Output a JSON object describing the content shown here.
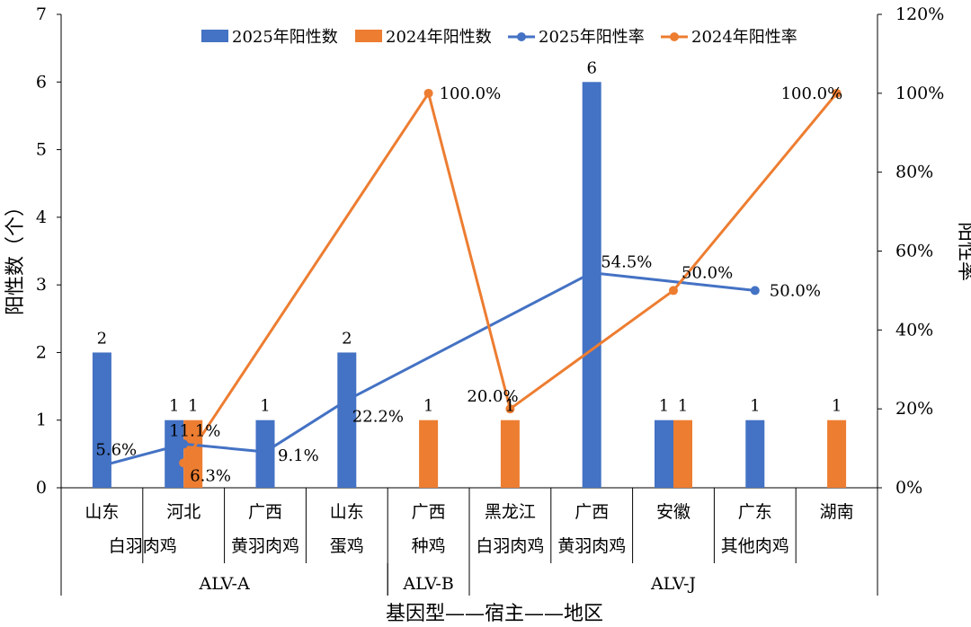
{
  "chart_data": {
    "type": "bar",
    "categories": [
      "山东",
      "河北",
      "广西",
      "山东",
      "广西",
      "黑龙江",
      "广西",
      "安徽",
      "广东",
      "湖南"
    ],
    "hosts": [
      {
        "label": "白羽肉鸡",
        "span": [
          0,
          1
        ]
      },
      {
        "label": "黄羽肉鸡",
        "span": [
          2,
          2
        ]
      },
      {
        "label": "蛋鸡",
        "span": [
          3,
          3
        ]
      },
      {
        "label": "种鸡",
        "span": [
          4,
          4
        ]
      },
      {
        "label": "白羽肉鸡",
        "span": [
          5,
          5
        ]
      },
      {
        "label": "黄羽肉鸡",
        "span": [
          6,
          6
        ]
      },
      {
        "label": "其他肉鸡",
        "span": [
          7,
          9
        ]
      }
    ],
    "genotypes": [
      {
        "label": "ALV-A",
        "span": [
          0,
          3
        ]
      },
      {
        "label": "ALV-B",
        "span": [
          4,
          4
        ]
      },
      {
        "label": "ALV-J",
        "span": [
          5,
          9
        ]
      }
    ],
    "series": [
      {
        "name": "2025年阳性数",
        "kind": "bar",
        "axis": "left",
        "color": "#4472C4",
        "values": [
          2,
          1,
          1,
          2,
          null,
          null,
          6,
          1,
          1,
          null
        ],
        "labels": [
          "2",
          "1",
          "1",
          "2",
          "",
          "",
          "6",
          "1",
          "1",
          ""
        ]
      },
      {
        "name": "2024年阳性数",
        "kind": "bar",
        "axis": "left",
        "color": "#ED7D31",
        "values": [
          null,
          1,
          null,
          null,
          1,
          1,
          null,
          1,
          null,
          1
        ],
        "labels": [
          "",
          "1",
          "",
          "",
          "1",
          "1",
          "",
          "1",
          "",
          "1"
        ]
      },
      {
        "name": "2025年阳性率",
        "kind": "line",
        "axis": "right",
        "color": "#4472C4",
        "values": [
          5.6,
          11.1,
          9.1,
          22.2,
          null,
          null,
          54.5,
          null,
          50.0,
          null
        ],
        "labels": [
          "5.6%",
          "11.1%",
          "9.1%",
          "22.2%",
          "",
          "",
          "54.5%",
          "",
          "50.0%",
          ""
        ]
      },
      {
        "name": "2024年阳性率",
        "kind": "line",
        "axis": "right",
        "color": "#ED7D31",
        "values": [
          null,
          6.3,
          null,
          null,
          100.0,
          20.0,
          null,
          50.0,
          null,
          100.0
        ],
        "labels": [
          "",
          "6.3%",
          "",
          "",
          "100.0%",
          "20.0%",
          "",
          "50.0%",
          "",
          "100.0%"
        ]
      }
    ],
    "ylabel": "阳性数（个）",
    "y2label": "阳性率",
    "xlabel": "基因型——宿主——地区",
    "ylim": [
      0,
      7
    ],
    "y2lim": [
      0,
      120
    ],
    "yticks": [
      "0",
      "1",
      "2",
      "3",
      "4",
      "5",
      "6",
      "7"
    ],
    "y2ticks": [
      "0%",
      "20%",
      "40%",
      "60%",
      "80%",
      "100%",
      "120%"
    ],
    "legend_position": "top",
    "grid": false
  }
}
